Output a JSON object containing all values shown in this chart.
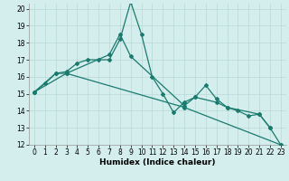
{
  "xlabel": "Humidex (Indice chaleur)",
  "x": [
    0,
    1,
    2,
    3,
    4,
    5,
    6,
    7,
    8,
    9,
    10,
    11,
    12,
    13,
    14,
    15,
    16,
    17,
    18,
    19,
    20,
    21,
    22,
    23
  ],
  "line1_y": [
    15.1,
    15.6,
    16.2,
    16.3,
    16.8,
    17.0,
    17.0,
    17.0,
    18.2,
    20.4,
    18.5,
    16.0,
    15.0,
    13.9,
    14.5,
    14.8,
    15.5,
    14.7,
    14.2,
    14.0,
    13.7,
    13.8,
    13.0,
    12.0
  ],
  "line2_x": [
    0,
    2,
    3,
    7,
    8,
    9,
    14,
    15,
    17,
    18,
    21,
    22
  ],
  "line2_y": [
    15.1,
    16.2,
    16.2,
    17.3,
    18.5,
    17.2,
    14.3,
    14.8,
    14.5,
    14.2,
    13.8,
    13.0
  ],
  "line3_x": [
    0,
    3,
    14,
    23
  ],
  "line3_y": [
    15.1,
    16.2,
    14.2,
    12.0
  ],
  "ylim": [
    12,
    20
  ],
  "xlim": [
    -0.5,
    23.5
  ],
  "yticks": [
    12,
    13,
    14,
    15,
    16,
    17,
    18,
    19,
    20
  ],
  "xticks": [
    0,
    1,
    2,
    3,
    4,
    5,
    6,
    7,
    8,
    9,
    10,
    11,
    12,
    13,
    14,
    15,
    16,
    17,
    18,
    19,
    20,
    21,
    22,
    23
  ],
  "line_color": "#1a7a6e",
  "bg_color": "#d4eeee",
  "grid_color": "#b8d8d8",
  "label_fontsize": 6.5,
  "tick_fontsize": 5.5
}
